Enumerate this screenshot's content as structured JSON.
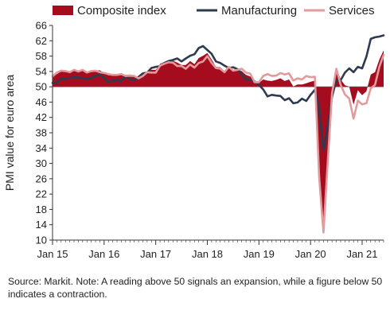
{
  "chart_data": {
    "type": "area",
    "ylabel": "PMI value for euro area",
    "ylim": [
      10,
      66
    ],
    "yticks": [
      10,
      14,
      18,
      22,
      26,
      30,
      34,
      38,
      42,
      46,
      50,
      54,
      58,
      62,
      66
    ],
    "x_range": [
      "2015-01",
      "2021-06"
    ],
    "xticks": [
      "Jan 15",
      "Jan 16",
      "Jan 17",
      "Jan 18",
      "Jan 19",
      "Jan 20",
      "Jan 21"
    ],
    "baseline": 50,
    "grid": false,
    "legend_position": "top",
    "months": [
      "2015-01",
      "2015-02",
      "2015-03",
      "2015-04",
      "2015-05",
      "2015-06",
      "2015-07",
      "2015-08",
      "2015-09",
      "2015-10",
      "2015-11",
      "2015-12",
      "2016-01",
      "2016-02",
      "2016-03",
      "2016-04",
      "2016-05",
      "2016-06",
      "2016-07",
      "2016-08",
      "2016-09",
      "2016-10",
      "2016-11",
      "2016-12",
      "2017-01",
      "2017-02",
      "2017-03",
      "2017-04",
      "2017-05",
      "2017-06",
      "2017-07",
      "2017-08",
      "2017-09",
      "2017-10",
      "2017-11",
      "2017-12",
      "2018-01",
      "2018-02",
      "2018-03",
      "2018-04",
      "2018-05",
      "2018-06",
      "2018-07",
      "2018-08",
      "2018-09",
      "2018-10",
      "2018-11",
      "2018-12",
      "2019-01",
      "2019-02",
      "2019-03",
      "2019-04",
      "2019-05",
      "2019-06",
      "2019-07",
      "2019-08",
      "2019-09",
      "2019-10",
      "2019-11",
      "2019-12",
      "2020-01",
      "2020-02",
      "2020-03",
      "2020-04",
      "2020-05",
      "2020-06",
      "2020-07",
      "2020-08",
      "2020-09",
      "2020-10",
      "2020-11",
      "2020-12",
      "2021-01",
      "2021-02",
      "2021-03",
      "2021-04",
      "2021-05",
      "2021-06"
    ],
    "series": [
      {
        "name": "Composite index",
        "color": "#a50d1f",
        "style": "area",
        "values": [
          52.6,
          53.3,
          54.0,
          53.9,
          53.6,
          54.2,
          53.9,
          54.3,
          53.6,
          53.9,
          54.2,
          54.3,
          53.6,
          53.0,
          53.1,
          53.0,
          53.1,
          53.1,
          53.2,
          52.9,
          52.6,
          53.3,
          53.9,
          54.4,
          54.4,
          56.0,
          56.4,
          56.8,
          56.8,
          56.3,
          55.7,
          55.7,
          56.7,
          55.9,
          57.5,
          58.1,
          58.8,
          57.1,
          55.2,
          55.1,
          54.1,
          54.9,
          54.3,
          54.5,
          54.1,
          53.1,
          52.7,
          51.1,
          51.0,
          51.9,
          51.6,
          51.5,
          51.8,
          52.2,
          51.5,
          51.9,
          50.1,
          50.6,
          50.6,
          50.9,
          51.3,
          51.6,
          29.7,
          13.6,
          31.9,
          48.5,
          54.9,
          51.9,
          50.4,
          50.0,
          45.3,
          49.1,
          47.8,
          48.8,
          53.2,
          53.8,
          57.1,
          59.5
        ]
      },
      {
        "name": "Manufacturing",
        "color": "#2e3a4e",
        "style": "line",
        "values": [
          51.0,
          51.0,
          52.2,
          52.0,
          52.2,
          52.5,
          52.4,
          52.3,
          52.0,
          52.3,
          52.8,
          53.2,
          52.3,
          51.2,
          51.6,
          51.7,
          51.5,
          52.8,
          52.0,
          51.7,
          52.6,
          53.5,
          53.7,
          54.9,
          55.2,
          55.4,
          56.2,
          56.7,
          57.0,
          57.4,
          56.6,
          57.4,
          58.1,
          58.5,
          60.1,
          60.6,
          59.6,
          58.6,
          56.6,
          56.2,
          55.5,
          54.9,
          55.1,
          54.6,
          53.2,
          52.0,
          51.8,
          51.4,
          50.5,
          49.3,
          47.5,
          47.9,
          47.7,
          47.6,
          46.5,
          47.0,
          45.7,
          45.9,
          46.9,
          46.3,
          47.9,
          49.2,
          44.5,
          33.4,
          39.4,
          47.4,
          51.8,
          51.7,
          53.7,
          54.8,
          53.8,
          55.2,
          54.8,
          57.9,
          62.5,
          62.9,
          63.1,
          63.4
        ]
      },
      {
        "name": "Services",
        "color": "#e29a9c",
        "style": "line",
        "values": [
          52.7,
          53.7,
          54.2,
          54.1,
          53.8,
          54.4,
          54.0,
          54.4,
          53.7,
          54.1,
          54.2,
          53.8,
          53.6,
          53.3,
          53.1,
          53.1,
          53.3,
          52.8,
          52.9,
          52.8,
          52.2,
          52.8,
          53.8,
          53.7,
          53.7,
          55.5,
          56.0,
          56.4,
          56.3,
          55.4,
          55.4,
          54.7,
          55.8,
          55.0,
          56.2,
          56.6,
          58.0,
          56.2,
          54.9,
          54.7,
          53.8,
          55.2,
          54.2,
          54.4,
          54.7,
          53.7,
          53.4,
          51.2,
          51.2,
          52.8,
          53.3,
          52.8,
          52.9,
          53.6,
          53.2,
          53.5,
          51.6,
          52.2,
          51.9,
          52.8,
          52.5,
          52.6,
          26.4,
          12.0,
          30.5,
          48.3,
          54.7,
          50.5,
          48.0,
          46.9,
          41.7,
          46.4,
          45.4,
          45.7,
          49.6,
          50.5,
          55.2,
          58.3
        ]
      }
    ]
  },
  "note": "Source: Markit. Note: A reading above 50 signals an expansion, while a figure below 50 indicates a contraction."
}
